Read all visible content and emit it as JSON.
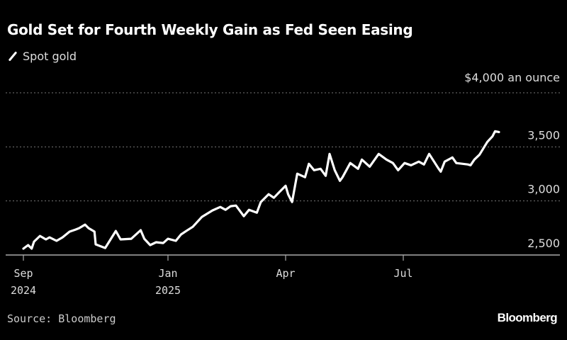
{
  "chart_data": {
    "type": "line",
    "title": "Gold Set for Fourth Weekly Gain as Fed Seen Easing",
    "legend": [
      {
        "name": "Spot gold",
        "color": "#ffffff"
      }
    ],
    "legend_placement": "top-left",
    "unit_label": "$4,000 an ounce",
    "ylim": [
      2500,
      4000
    ],
    "yticks": [
      {
        "value": 4000,
        "label": ""
      },
      {
        "value": 3500,
        "label": "3,500"
      },
      {
        "value": 3000,
        "label": "3,000"
      },
      {
        "value": 2500,
        "label": "2,500"
      }
    ],
    "x_unit": "days since 2024-09-01",
    "xticks": [
      {
        "x": 0,
        "label": "Sep",
        "sublabel": "2024"
      },
      {
        "x": 122,
        "label": "Jan",
        "sublabel": "2025"
      },
      {
        "x": 212,
        "label": "Apr",
        "sublabel": ""
      },
      {
        "x": 303,
        "label": "Jul",
        "sublabel": ""
      }
    ],
    "grid": "horizontal dotted",
    "series": [
      {
        "name": "Spot gold",
        "x": [
          0,
          4,
          7,
          9,
          14,
          19,
          22,
          28,
          33,
          39,
          44,
          47,
          52,
          55,
          60,
          61,
          69,
          78,
          82,
          91,
          99,
          102,
          107,
          112,
          118,
          122,
          128,
          132,
          136,
          141,
          148,
          156,
          162,
          166,
          170,
          174,
          180,
          184,
          190,
          193,
          199,
          203,
          207,
          212,
          214,
          217,
          221,
          227,
          230,
          234,
          239,
          243,
          246,
          250,
          254,
          256,
          262,
          268,
          271,
          277,
          284,
          290,
          295,
          299,
          304,
          309,
          315,
          319,
          323,
          330,
          332,
          335,
          341,
          344,
          353,
          355,
          358,
          362,
          368,
          372,
          374,
          377
        ],
        "values": [
          2559,
          2592,
          2559,
          2624,
          2676,
          2644,
          2663,
          2631,
          2663,
          2716,
          2735,
          2748,
          2781,
          2748,
          2716,
          2598,
          2565,
          2722,
          2644,
          2650,
          2729,
          2650,
          2592,
          2618,
          2611,
          2650,
          2631,
          2690,
          2722,
          2761,
          2853,
          2912,
          2944,
          2918,
          2951,
          2957,
          2859,
          2918,
          2892,
          2990,
          3062,
          3029,
          3080,
          3140,
          3060,
          2990,
          3252,
          3219,
          3343,
          3284,
          3297,
          3232,
          3435,
          3284,
          3186,
          3219,
          3350,
          3297,
          3382,
          3317,
          3435,
          3382,
          3350,
          3284,
          3350,
          3330,
          3363,
          3337,
          3435,
          3304,
          3271,
          3363,
          3402,
          3350,
          3337,
          3330,
          3382,
          3428,
          3546,
          3598,
          3644,
          3637
        ]
      }
    ],
    "source": "Source: Bloomberg",
    "brand": "Bloomberg"
  }
}
